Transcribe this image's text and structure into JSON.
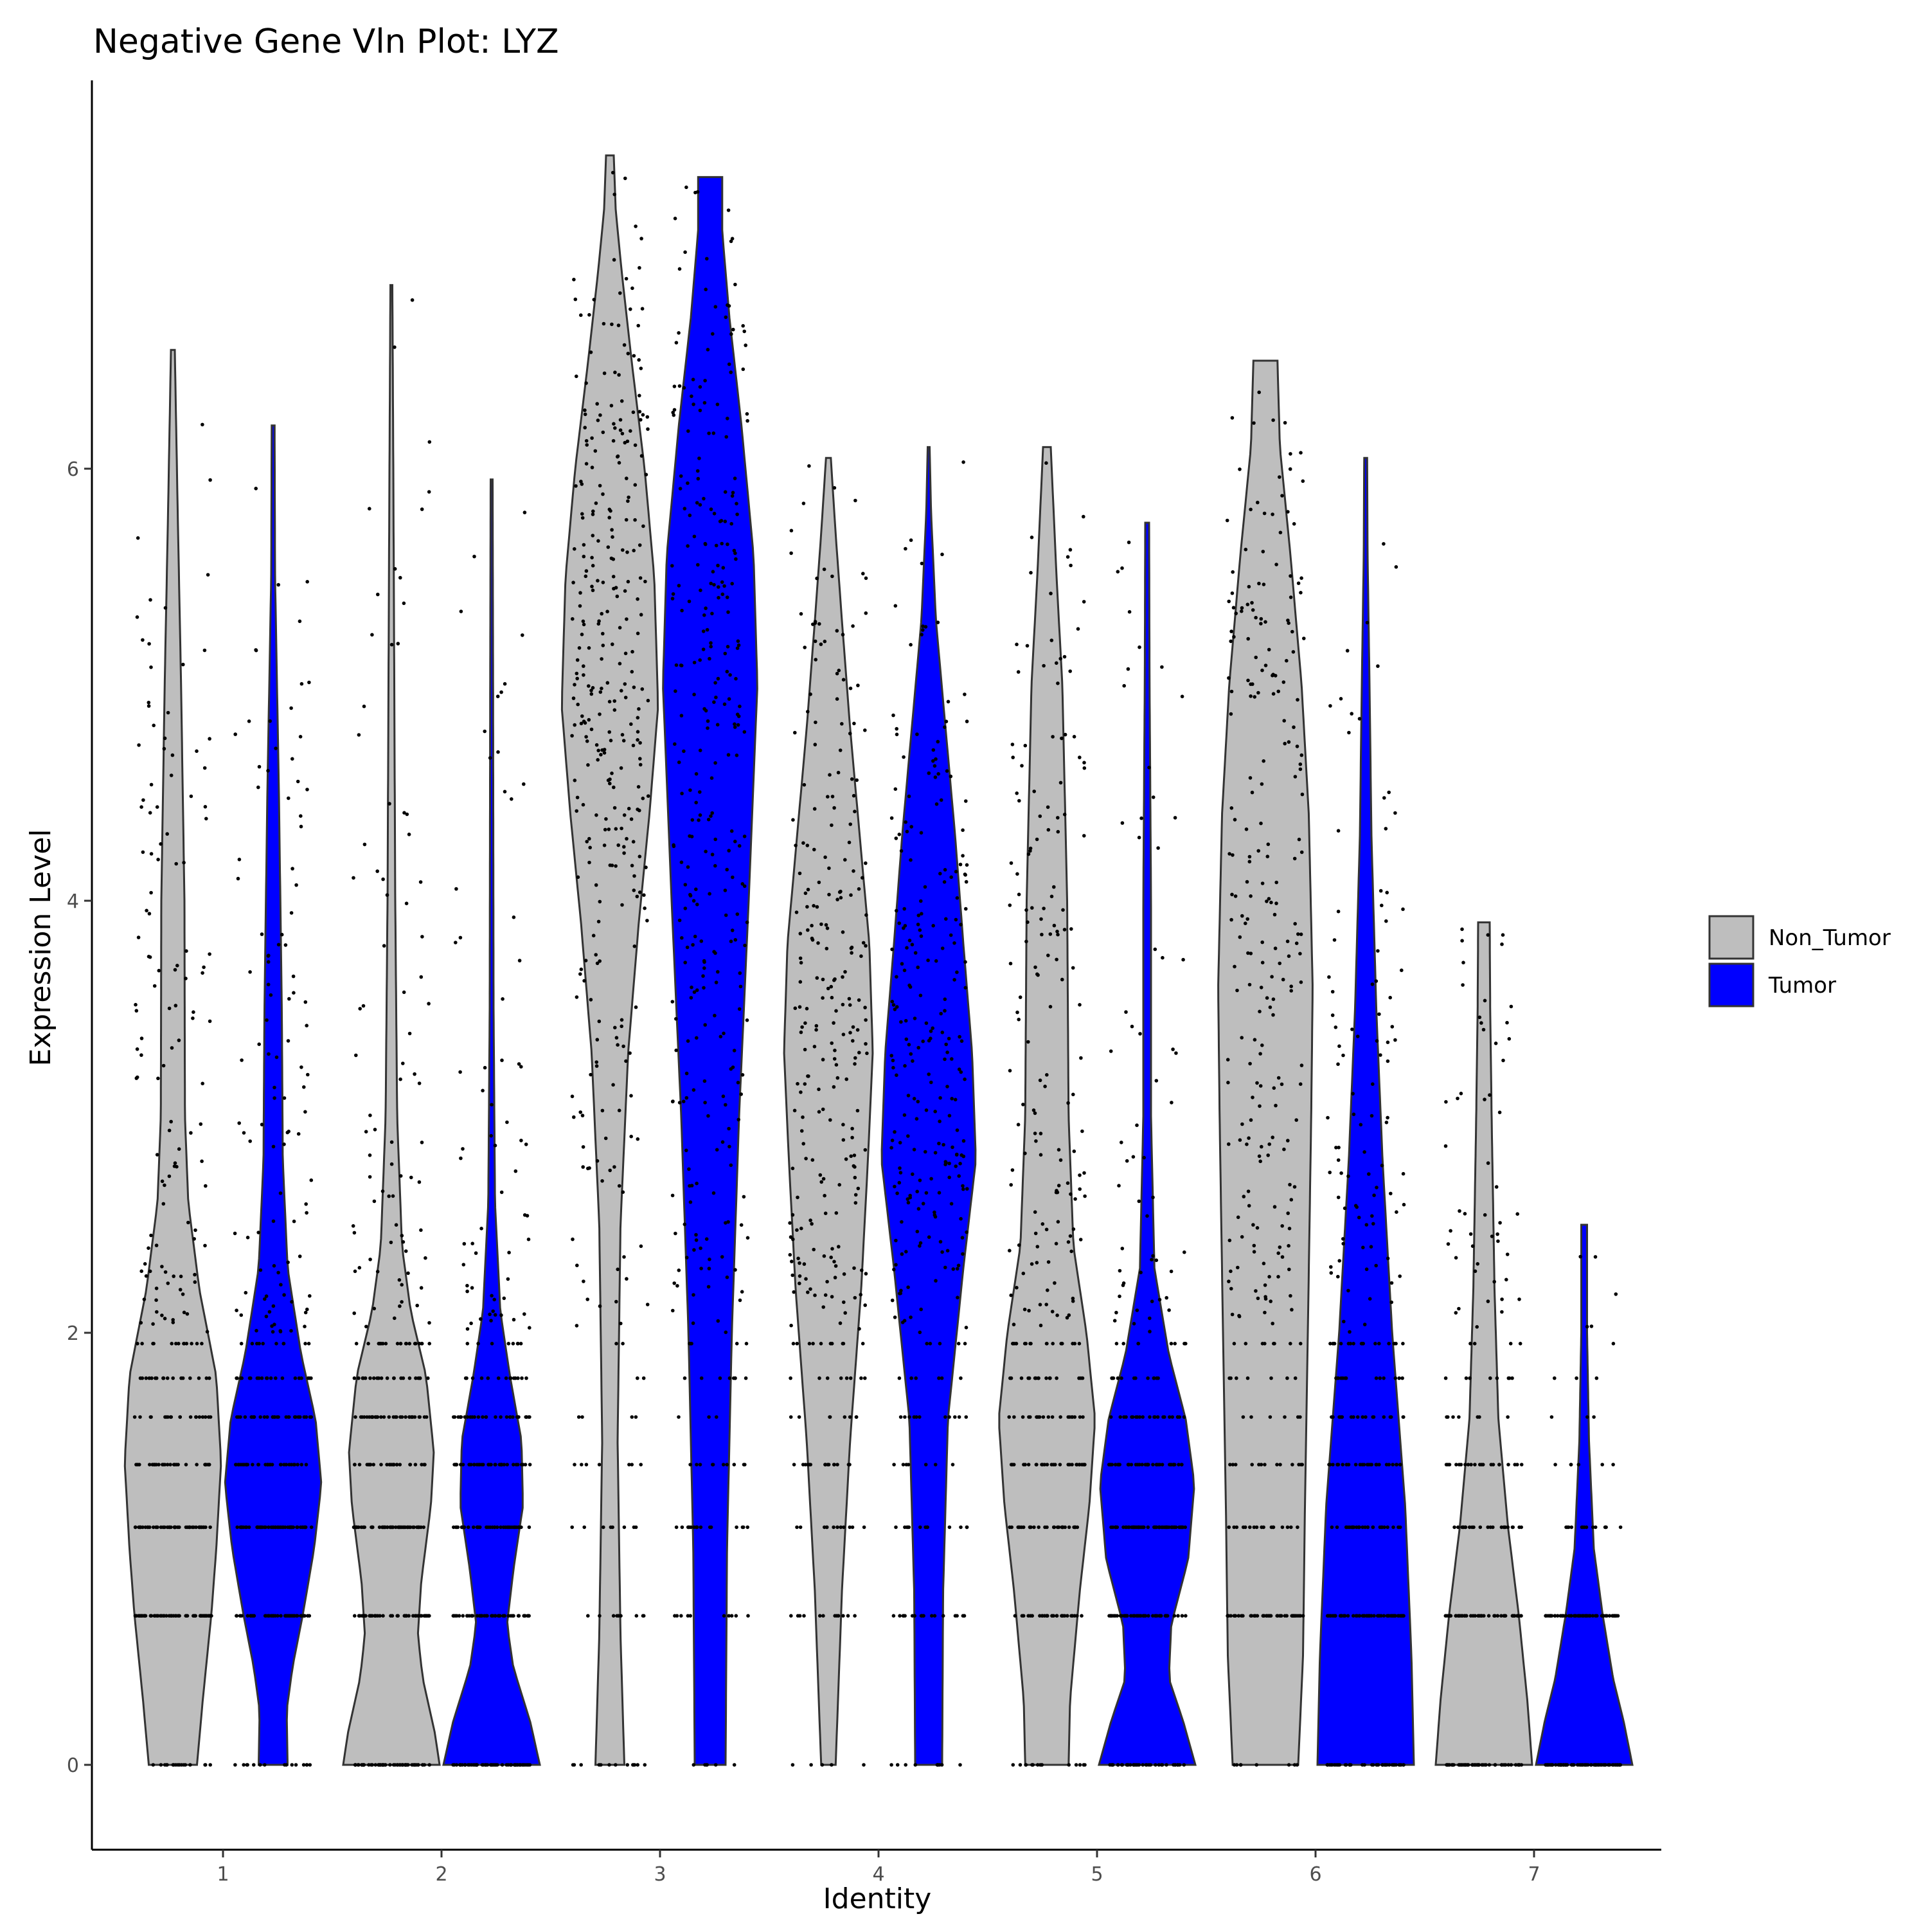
{
  "chart_data": {
    "type": "violin",
    "title": "Negative Gene Vln Plot: LYZ",
    "xlabel": "Identity",
    "ylabel": "Expression Level",
    "categories": [
      "1",
      "2",
      "3",
      "4",
      "5",
      "6",
      "7"
    ],
    "yticks": [
      "0",
      "2",
      "4",
      "6"
    ],
    "ylim": [
      -0.38,
      7.45
    ],
    "legend_position": "right",
    "series": [
      {
        "name": "Non_Tumor",
        "color": "#bebebe",
        "violins": [
          {
            "category": "1",
            "min": 0,
            "max": 6.55,
            "median": 1.4,
            "profile": [
              [
                0,
                0.5
              ],
              [
                0.3,
                0.62
              ],
              [
                0.7,
                0.8
              ],
              [
                1.0,
                0.9
              ],
              [
                1.4,
                1.0
              ],
              [
                1.8,
                0.9
              ],
              [
                2.2,
                0.55
              ],
              [
                2.6,
                0.32
              ],
              [
                3.0,
                0.25
              ],
              [
                4.0,
                0.24
              ],
              [
                5.0,
                0.17
              ],
              [
                5.8,
                0.1
              ],
              [
                6.3,
                0.06
              ],
              [
                6.55,
                0.04
              ]
            ]
          },
          {
            "category": "2",
            "min": 0,
            "max": 6.85,
            "median": 1.4,
            "profile": [
              [
                0,
                1.0
              ],
              [
                0.15,
                0.9
              ],
              [
                0.4,
                0.65
              ],
              [
                0.6,
                0.55
              ],
              [
                0.85,
                0.62
              ],
              [
                1.2,
                0.82
              ],
              [
                1.45,
                0.88
              ],
              [
                1.8,
                0.72
              ],
              [
                2.1,
                0.4
              ],
              [
                2.4,
                0.22
              ],
              [
                3.0,
                0.12
              ],
              [
                4.0,
                0.08
              ],
              [
                5.0,
                0.06
              ],
              [
                6.0,
                0.04
              ],
              [
                6.85,
                0.02
              ]
            ]
          },
          {
            "category": "3",
            "min": 0,
            "max": 7.45,
            "median": 5.0,
            "profile": [
              [
                0,
                0.3
              ],
              [
                0.6,
                0.22
              ],
              [
                1.5,
                0.16
              ],
              [
                2.5,
                0.22
              ],
              [
                3.3,
                0.38
              ],
              [
                3.9,
                0.6
              ],
              [
                4.4,
                0.82
              ],
              [
                4.9,
                1.0
              ],
              [
                5.5,
                0.92
              ],
              [
                6.0,
                0.72
              ],
              [
                6.5,
                0.45
              ],
              [
                6.9,
                0.25
              ],
              [
                7.2,
                0.12
              ],
              [
                7.45,
                0.08
              ]
            ]
          },
          {
            "category": "4",
            "min": 0,
            "max": 6.05,
            "median": 3.3,
            "profile": [
              [
                0,
                0.15
              ],
              [
                0.3,
                0.2
              ],
              [
                0.8,
                0.28
              ],
              [
                1.5,
                0.45
              ],
              [
                2.2,
                0.68
              ],
              [
                2.8,
                0.82
              ],
              [
                3.3,
                0.92
              ],
              [
                3.8,
                0.85
              ],
              [
                4.3,
                0.65
              ],
              [
                4.8,
                0.45
              ],
              [
                5.3,
                0.28
              ],
              [
                5.7,
                0.15
              ],
              [
                6.05,
                0.05
              ]
            ]
          },
          {
            "category": "5",
            "min": 0,
            "max": 6.1,
            "median": 1.6,
            "profile": [
              [
                0,
                0.45
              ],
              [
                0.3,
                0.48
              ],
              [
                0.8,
                0.68
              ],
              [
                1.2,
                0.88
              ],
              [
                1.6,
                1.0
              ],
              [
                2.0,
                0.82
              ],
              [
                2.4,
                0.55
              ],
              [
                3.0,
                0.45
              ],
              [
                4.0,
                0.42
              ],
              [
                5.0,
                0.32
              ],
              [
                5.5,
                0.2
              ],
              [
                6.1,
                0.08
              ]
            ]
          },
          {
            "category": "6",
            "min": 0,
            "max": 6.5,
            "median": 3.0,
            "profile": [
              [
                0,
                0.68
              ],
              [
                0.5,
                0.78
              ],
              [
                1.2,
                0.82
              ],
              [
                2.0,
                0.88
              ],
              [
                3.0,
                0.95
              ],
              [
                3.6,
                0.98
              ],
              [
                4.4,
                0.9
              ],
              [
                5.0,
                0.75
              ],
              [
                5.6,
                0.52
              ],
              [
                6.1,
                0.3
              ],
              [
                6.5,
                0.25
              ]
            ]
          },
          {
            "category": "7",
            "min": 0,
            "max": 3.9,
            "median": 0.7,
            "profile": [
              [
                0,
                1.0
              ],
              [
                0.3,
                0.9
              ],
              [
                0.7,
                0.72
              ],
              [
                1.1,
                0.5
              ],
              [
                1.6,
                0.3
              ],
              [
                2.2,
                0.22
              ],
              [
                3.0,
                0.16
              ],
              [
                3.5,
                0.13
              ],
              [
                3.9,
                0.12
              ]
            ]
          }
        ]
      },
      {
        "name": "Tumor",
        "color": "#0000ff",
        "violins": [
          {
            "category": "1",
            "min": 0,
            "max": 6.2,
            "median": 1.4,
            "profile": [
              [
                0,
                0.3
              ],
              [
                0.25,
                0.28
              ],
              [
                0.45,
                0.4
              ],
              [
                0.7,
                0.62
              ],
              [
                1.0,
                0.85
              ],
              [
                1.3,
                1.0
              ],
              [
                1.6,
                0.88
              ],
              [
                1.9,
                0.58
              ],
              [
                2.3,
                0.3
              ],
              [
                2.8,
                0.2
              ],
              [
                3.5,
                0.18
              ],
              [
                4.5,
                0.12
              ],
              [
                5.5,
                0.04
              ],
              [
                6.2,
                0.03
              ]
            ]
          },
          {
            "category": "2",
            "min": 0,
            "max": 5.95,
            "median": 1.3,
            "profile": [
              [
                0,
                1.0
              ],
              [
                0.2,
                0.8
              ],
              [
                0.45,
                0.45
              ],
              [
                0.65,
                0.32
              ],
              [
                0.9,
                0.45
              ],
              [
                1.2,
                0.65
              ],
              [
                1.5,
                0.62
              ],
              [
                1.8,
                0.38
              ],
              [
                2.1,
                0.18
              ],
              [
                2.6,
                0.07
              ],
              [
                3.5,
                0.04
              ],
              [
                5.0,
                0.03
              ],
              [
                5.95,
                0.02
              ]
            ]
          },
          {
            "category": "3",
            "min": 0,
            "max": 7.35,
            "median": 4.8,
            "profile": [
              [
                0,
                0.32
              ],
              [
                1.0,
                0.35
              ],
              [
                2.0,
                0.45
              ],
              [
                3.0,
                0.6
              ],
              [
                4.0,
                0.8
              ],
              [
                5.0,
                0.98
              ],
              [
                5.6,
                0.9
              ],
              [
                6.2,
                0.65
              ],
              [
                6.7,
                0.4
              ],
              [
                7.1,
                0.25
              ],
              [
                7.35,
                0.25
              ]
            ]
          },
          {
            "category": "4",
            "min": 0,
            "max": 6.1,
            "median": 2.9,
            "profile": [
              [
                0,
                0.28
              ],
              [
                0.8,
                0.3
              ],
              [
                1.6,
                0.4
              ],
              [
                2.3,
                0.72
              ],
              [
                2.8,
                0.98
              ],
              [
                3.3,
                0.9
              ],
              [
                3.8,
                0.72
              ],
              [
                4.3,
                0.55
              ],
              [
                4.8,
                0.35
              ],
              [
                5.3,
                0.15
              ],
              [
                5.8,
                0.05
              ],
              [
                6.1,
                0.02
              ]
            ]
          },
          {
            "category": "5",
            "min": 0,
            "max": 5.75,
            "median": 1.3,
            "profile": [
              [
                0,
                1.0
              ],
              [
                0.2,
                0.75
              ],
              [
                0.4,
                0.45
              ],
              [
                0.65,
                0.5
              ],
              [
                0.95,
                0.85
              ],
              [
                1.3,
                0.98
              ],
              [
                1.6,
                0.8
              ],
              [
                1.9,
                0.45
              ],
              [
                2.3,
                0.15
              ],
              [
                3.0,
                0.08
              ],
              [
                4.0,
                0.08
              ],
              [
                5.0,
                0.05
              ],
              [
                5.75,
                0.04
              ]
            ]
          },
          {
            "category": "6",
            "min": 0,
            "max": 6.05,
            "median": 1.0,
            "profile": [
              [
                0,
                1.0
              ],
              [
                0.5,
                0.95
              ],
              [
                1.2,
                0.82
              ],
              [
                2.0,
                0.55
              ],
              [
                2.8,
                0.35
              ],
              [
                3.5,
                0.22
              ],
              [
                4.3,
                0.12
              ],
              [
                5.0,
                0.08
              ],
              [
                5.6,
                0.04
              ],
              [
                6.05,
                0.03
              ]
            ]
          },
          {
            "category": "7",
            "min": 0,
            "max": 2.5,
            "median": 0.4,
            "profile": [
              [
                0,
                1.0
              ],
              [
                0.2,
                0.82
              ],
              [
                0.4,
                0.6
              ],
              [
                0.7,
                0.38
              ],
              [
                1.0,
                0.2
              ],
              [
                1.5,
                0.1
              ],
              [
                2.0,
                0.06
              ],
              [
                2.5,
                0.06
              ]
            ]
          }
        ]
      }
    ]
  }
}
